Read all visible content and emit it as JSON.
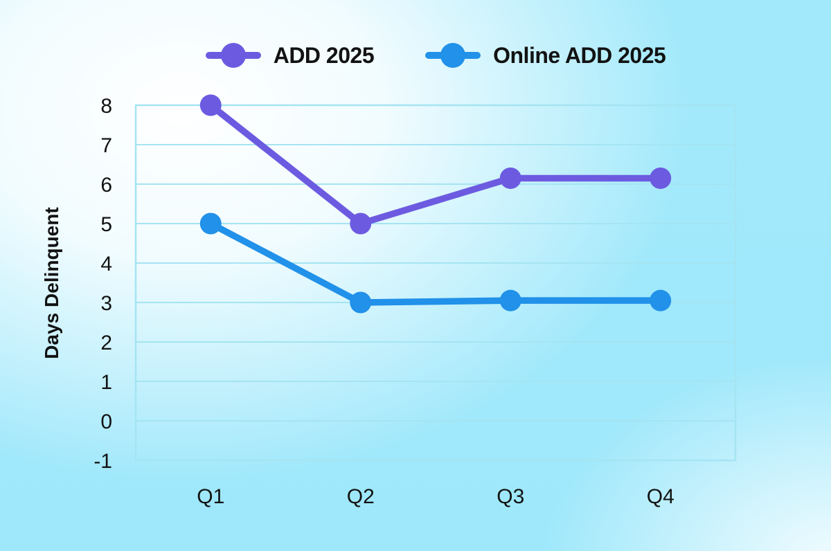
{
  "chart_data": {
    "type": "line",
    "categories": [
      "Q1",
      "Q2",
      "Q3",
      "Q4"
    ],
    "series": [
      {
        "name": "ADD 2025",
        "color": "#6C5BE0",
        "values": [
          8,
          5,
          6.15,
          6.15
        ]
      },
      {
        "name": "Online ADD 2025",
        "color": "#2191E9",
        "values": [
          5,
          3,
          3.05,
          3.05
        ]
      }
    ],
    "title": "",
    "xlabel": "",
    "ylabel": "Days Delinquent",
    "ylim": [
      -1,
      8
    ],
    "y_ticks": [
      8,
      7,
      6,
      5,
      4,
      3,
      2,
      1,
      0,
      -1
    ],
    "grid": "horizontal-only",
    "legend_position": "top-center",
    "grid_color": "#A5E4F2",
    "text_color": "#121212",
    "background_base": "#9FE8FB",
    "background_glow": "#FFFFFF"
  }
}
